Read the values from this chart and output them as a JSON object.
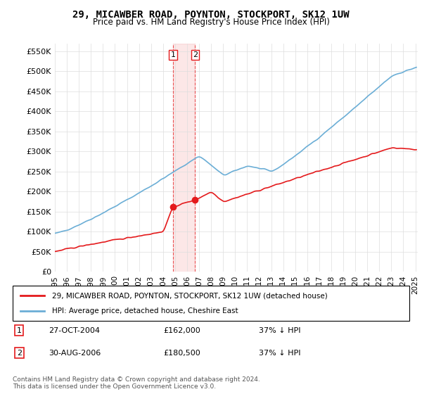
{
  "title": "29, MICAWBER ROAD, POYNTON, STOCKPORT, SK12 1UW",
  "subtitle": "Price paid vs. HM Land Registry's House Price Index (HPI)",
  "legend_line1": "29, MICAWBER ROAD, POYNTON, STOCKPORT, SK12 1UW (detached house)",
  "legend_line2": "HPI: Average price, detached house, Cheshire East",
  "transaction1_label": "1",
  "transaction1_date": "27-OCT-2004",
  "transaction1_price": "£162,000",
  "transaction1_hpi": "37% ↓ HPI",
  "transaction2_label": "2",
  "transaction2_date": "30-AUG-2006",
  "transaction2_price": "£180,500",
  "transaction2_hpi": "37% ↓ HPI",
  "footer": "Contains HM Land Registry data © Crown copyright and database right 2024.\nThis data is licensed under the Open Government Licence v3.0.",
  "hpi_color": "#6baed6",
  "price_color": "#e41a1c",
  "marker_color": "#e41a1c",
  "background_color": "#ffffff",
  "grid_color": "#dddddd",
  "ylim": [
    0,
    570000
  ],
  "yticks": [
    0,
    50000,
    100000,
    150000,
    200000,
    250000,
    300000,
    350000,
    400000,
    450000,
    500000,
    550000
  ],
  "start_year": 1995,
  "end_year": 2025
}
